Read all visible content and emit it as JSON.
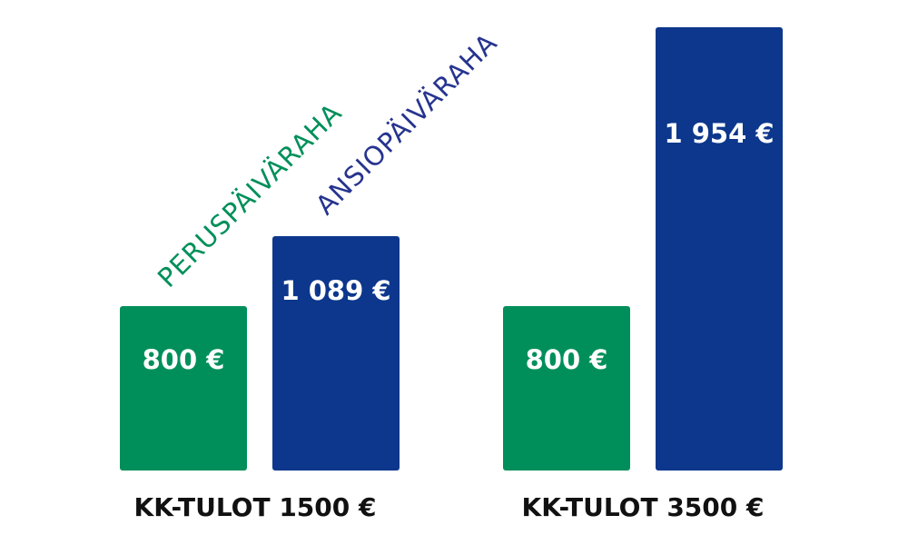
{
  "chart_data": {
    "type": "bar",
    "categories": [
      "KK-TULOT 1500 €",
      "KK-TULOT 3500 €"
    ],
    "series": [
      {
        "name": "PERUSPÄIVÄRAHA",
        "color": "#008F5A",
        "values": [
          800,
          800
        ],
        "labels": [
          "800 €",
          "800 €"
        ]
      },
      {
        "name": "ANSIOPÄIVÄRAHA",
        "color": "#0C378C",
        "values": [
          1089,
          1954
        ],
        "labels": [
          "1 089 €",
          "1 954 €"
        ]
      }
    ],
    "title": "",
    "xlabel": "",
    "ylabel": "",
    "ylim": [
      0,
      1954
    ],
    "grid": false,
    "legend": "rotated labels above first group"
  }
}
